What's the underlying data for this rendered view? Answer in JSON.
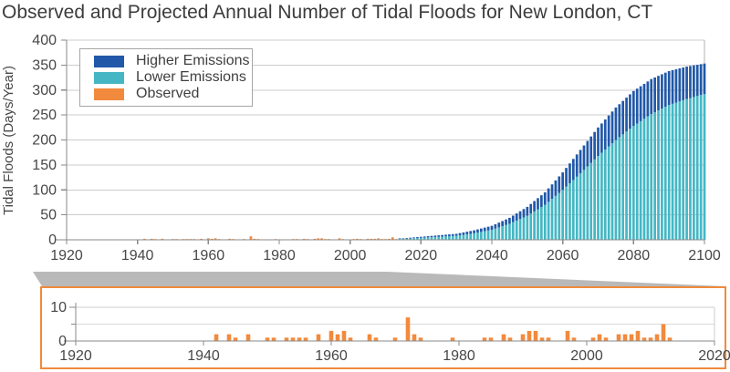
{
  "title": "Observed and Projected Annual Number of Tidal Floods for New London, CT",
  "colors": {
    "higher": "#2158a8",
    "lower": "#45b7c4",
    "observed": "#f28a3d",
    "inset_border": "#ef8a3c",
    "grid": "#cccccc",
    "grid_light": "#d9d9d9",
    "axis": "#8a8a8a",
    "tick_text": "#474747",
    "title_text": "#3c3c3c",
    "connector": "#b9b9b9",
    "frame": "#b3b3b3"
  },
  "legend": {
    "items": [
      {
        "label": "Higher Emissions",
        "color_key": "higher"
      },
      {
        "label": "Lower Emissions",
        "color_key": "lower"
      },
      {
        "label": "Observed",
        "color_key": "observed"
      }
    ]
  },
  "chart_data": {
    "type": "bar",
    "title": "Observed and Projected Annual Number of Tidal Floods for New London, CT",
    "main_chart": {
      "ylabel": "Tidal Floods (Days/Year)",
      "xlabel": "",
      "xlim": [
        1920,
        2100
      ],
      "ylim": [
        0,
        400
      ],
      "xticks": [
        1920,
        1940,
        1960,
        1980,
        2000,
        2020,
        2040,
        2060,
        2080,
        2100
      ],
      "yticks": [
        0,
        50,
        100,
        150,
        200,
        250,
        300,
        350,
        400
      ],
      "grid": "horizontal",
      "legend_position": "top-left",
      "stacked": true,
      "bar_period_years": 1,
      "series": [
        {
          "name": "Lower Emissions",
          "x": [
            2015,
            2020,
            2025,
            2030,
            2035,
            2040,
            2045,
            2050,
            2055,
            2060,
            2065,
            2070,
            2075,
            2080,
            2085,
            2090,
            2095,
            2100
          ],
          "values": [
            2,
            4,
            6,
            8,
            13,
            20,
            32,
            48,
            70,
            100,
            133,
            168,
            200,
            228,
            252,
            270,
            282,
            292
          ]
        },
        {
          "name": "Higher Emissions",
          "note": "values are stacked totals (lower + higher)",
          "x": [
            2015,
            2020,
            2025,
            2030,
            2035,
            2040,
            2045,
            2050,
            2055,
            2060,
            2065,
            2070,
            2075,
            2080,
            2085,
            2090,
            2095,
            2100
          ],
          "values": [
            3,
            6,
            9,
            12,
            19,
            28,
            44,
            66,
            95,
            135,
            180,
            225,
            265,
            298,
            322,
            338,
            347,
            353
          ]
        }
      ]
    },
    "observed_series": {
      "name": "Observed",
      "years": [
        1942,
        1944,
        1945,
        1947,
        1950,
        1951,
        1953,
        1954,
        1955,
        1956,
        1958,
        1960,
        1961,
        1962,
        1963,
        1966,
        1967,
        1970,
        1972,
        1973,
        1974,
        1979,
        1984,
        1985,
        1987,
        1988,
        1990,
        1991,
        1992,
        1993,
        1994,
        1997,
        1998,
        2001,
        2002,
        2003,
        2005,
        2006,
        2007,
        2008,
        2009,
        2010,
        2011,
        2012,
        2013
      ],
      "values": [
        2,
        2,
        1,
        2,
        1,
        1,
        1,
        1,
        1,
        1,
        2,
        3,
        2,
        3,
        1,
        2,
        1,
        1,
        7,
        2,
        1,
        1,
        1,
        1,
        2,
        1,
        2,
        3,
        3,
        1,
        1,
        3,
        1,
        1,
        2,
        1,
        2,
        2,
        2,
        3,
        1,
        1,
        2,
        5,
        1
      ]
    },
    "inset_chart": {
      "description": "zoomed view of observed tidal flood days",
      "xlim": [
        1920,
        2020
      ],
      "ylim": [
        0,
        10
      ],
      "xticks": [
        1920,
        1940,
        1960,
        1980,
        2000,
        2020
      ],
      "yticks": [
        0,
        5,
        10
      ],
      "ytick_labels": [
        "0",
        "",
        "10"
      ]
    }
  }
}
